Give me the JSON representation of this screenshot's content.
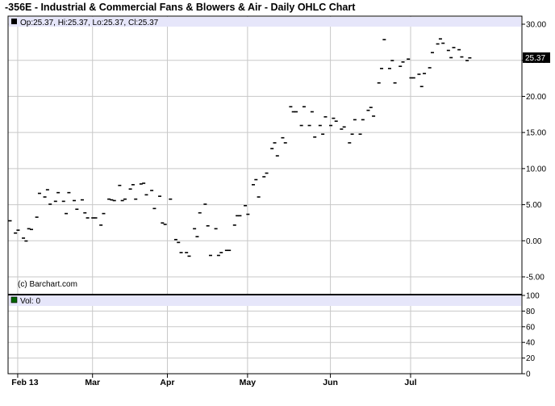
{
  "title": "-356E - Industrial & Commercial Fans & Blowers & Air - Daily OHLC Chart",
  "legend": {
    "ohlc": "Op:25.37, Hi:25.37, Lo:25.37, Cl:25.37",
    "volume": "Vol: 0"
  },
  "watermark": "(c) Barchart.com",
  "colors": {
    "legend_band": "#e6e6fa",
    "grid": "#c8c8c8",
    "price_marker": "#000000",
    "volume_marker": "#006400"
  },
  "chart_data": [
    {
      "type": "ohlc",
      "series_name": "Price",
      "grid": true,
      "y_axis_position": "right",
      "ylim": [
        -5.0,
        30.0
      ],
      "y_ticks": [
        "30.00",
        "25.00",
        "20.00",
        "15.00",
        "10.00",
        "5.00",
        "0.00",
        "-5.00"
      ],
      "x_month_labels": [
        "Feb 13",
        "Mar",
        "Apr",
        "May",
        "Jun",
        "Jul"
      ],
      "last_price_label": "25.37",
      "x_range_days": [
        0,
        182
      ],
      "month_positions_days": [
        3,
        31,
        59,
        89,
        120,
        150
      ],
      "points": [
        {
          "day": 0,
          "close": 2.8
        },
        {
          "day": 2,
          "close": 1.1
        },
        {
          "day": 3,
          "close": 1.5
        },
        {
          "day": 5,
          "close": 0.4
        },
        {
          "day": 6,
          "close": 0.0
        },
        {
          "day": 7,
          "close": 1.7
        },
        {
          "day": 8,
          "close": 1.6
        },
        {
          "day": 10,
          "close": 3.3
        },
        {
          "day": 11,
          "close": 6.6
        },
        {
          "day": 13,
          "close": 6.1
        },
        {
          "day": 14,
          "close": 7.1
        },
        {
          "day": 15,
          "close": 5.1
        },
        {
          "day": 17,
          "close": 5.5
        },
        {
          "day": 18,
          "close": 6.7
        },
        {
          "day": 20,
          "close": 5.5
        },
        {
          "day": 21,
          "close": 3.8
        },
        {
          "day": 22,
          "close": 6.7
        },
        {
          "day": 24,
          "close": 5.6
        },
        {
          "day": 25,
          "close": 4.4
        },
        {
          "day": 27,
          "close": 5.7
        },
        {
          "day": 28,
          "close": 3.9
        },
        {
          "day": 29,
          "close": 3.2
        },
        {
          "day": 31,
          "close": 3.2
        },
        {
          "day": 32,
          "close": 3.2
        },
        {
          "day": 34,
          "close": 2.2
        },
        {
          "day": 35,
          "close": 3.8
        },
        {
          "day": 37,
          "close": 5.8
        },
        {
          "day": 38,
          "close": 5.7
        },
        {
          "day": 39,
          "close": 5.6
        },
        {
          "day": 41,
          "close": 7.7
        },
        {
          "day": 42,
          "close": 5.6
        },
        {
          "day": 43,
          "close": 5.8
        },
        {
          "day": 45,
          "close": 7.2
        },
        {
          "day": 46,
          "close": 7.8
        },
        {
          "day": 47,
          "close": 5.8
        },
        {
          "day": 49,
          "close": 7.9
        },
        {
          "day": 50,
          "close": 8.0
        },
        {
          "day": 51,
          "close": 6.4
        },
        {
          "day": 53,
          "close": 7.0
        },
        {
          "day": 54,
          "close": 4.5
        },
        {
          "day": 56,
          "close": 6.2
        },
        {
          "day": 57,
          "close": 2.5
        },
        {
          "day": 58,
          "close": 2.3
        },
        {
          "day": 60,
          "close": 5.8
        },
        {
          "day": 62,
          "close": 0.2
        },
        {
          "day": 63,
          "close": -0.2
        },
        {
          "day": 64,
          "close": -1.6
        },
        {
          "day": 66,
          "close": -1.6
        },
        {
          "day": 67,
          "close": -2.1
        },
        {
          "day": 69,
          "close": 1.7
        },
        {
          "day": 70,
          "close": 0.6
        },
        {
          "day": 71,
          "close": 3.9
        },
        {
          "day": 73,
          "close": 5.1
        },
        {
          "day": 74,
          "close": 2.1
        },
        {
          "day": 75,
          "close": -2.0
        },
        {
          "day": 77,
          "close": 1.7
        },
        {
          "day": 78,
          "close": -2.0
        },
        {
          "day": 79,
          "close": -1.6
        },
        {
          "day": 81,
          "close": -1.3
        },
        {
          "day": 82,
          "close": -1.3
        },
        {
          "day": 84,
          "close": 2.2
        },
        {
          "day": 85,
          "close": 3.5
        },
        {
          "day": 86,
          "close": 3.5
        },
        {
          "day": 88,
          "close": 4.9
        },
        {
          "day": 89,
          "close": 3.7
        },
        {
          "day": 91,
          "close": 7.8
        },
        {
          "day": 92,
          "close": 8.5
        },
        {
          "day": 93,
          "close": 6.1
        },
        {
          "day": 95,
          "close": 8.9
        },
        {
          "day": 96,
          "close": 9.4
        },
        {
          "day": 98,
          "close": 12.8
        },
        {
          "day": 99,
          "close": 13.6
        },
        {
          "day": 100,
          "close": 11.8
        },
        {
          "day": 102,
          "close": 14.3
        },
        {
          "day": 103,
          "close": 13.6
        },
        {
          "day": 105,
          "close": 18.6
        },
        {
          "day": 106,
          "close": 17.9
        },
        {
          "day": 107,
          "close": 17.9
        },
        {
          "day": 109,
          "close": 16.0
        },
        {
          "day": 110,
          "close": 18.6
        },
        {
          "day": 112,
          "close": 16.0
        },
        {
          "day": 113,
          "close": 17.9
        },
        {
          "day": 114,
          "close": 14.4
        },
        {
          "day": 116,
          "close": 16.0
        },
        {
          "day": 117,
          "close": 14.8
        },
        {
          "day": 118,
          "close": 17.2
        },
        {
          "day": 120,
          "close": 16.0
        },
        {
          "day": 121,
          "close": 17.0
        },
        {
          "day": 122,
          "close": 16.6
        },
        {
          "day": 124,
          "close": 15.5
        },
        {
          "day": 125,
          "close": 15.8
        },
        {
          "day": 127,
          "close": 13.6
        },
        {
          "day": 128,
          "close": 14.8
        },
        {
          "day": 129,
          "close": 16.8
        },
        {
          "day": 131,
          "close": 14.8
        },
        {
          "day": 132,
          "close": 16.8
        },
        {
          "day": 134,
          "close": 18.1
        },
        {
          "day": 135,
          "close": 18.5
        },
        {
          "day": 136,
          "close": 17.3
        },
        {
          "day": 138,
          "close": 21.9
        },
        {
          "day": 139,
          "close": 23.9
        },
        {
          "day": 140,
          "close": 27.9
        },
        {
          "day": 142,
          "close": 23.9
        },
        {
          "day": 143,
          "close": 25.0
        },
        {
          "day": 144,
          "close": 21.9
        },
        {
          "day": 146,
          "close": 24.2
        },
        {
          "day": 147,
          "close": 24.8
        },
        {
          "day": 149,
          "close": 25.2
        },
        {
          "day": 150,
          "close": 22.6
        },
        {
          "day": 151,
          "close": 22.6
        },
        {
          "day": 153,
          "close": 23.1
        },
        {
          "day": 154,
          "close": 21.4
        },
        {
          "day": 155,
          "close": 23.2
        },
        {
          "day": 157,
          "close": 24.0
        },
        {
          "day": 158,
          "close": 26.1
        },
        {
          "day": 160,
          "close": 27.3
        },
        {
          "day": 161,
          "close": 28.0
        },
        {
          "day": 162,
          "close": 27.4
        },
        {
          "day": 164,
          "close": 26.4
        },
        {
          "day": 165,
          "close": 25.4
        },
        {
          "day": 166,
          "close": 26.8
        },
        {
          "day": 168,
          "close": 26.5
        },
        {
          "day": 169,
          "close": 25.5
        },
        {
          "day": 171,
          "close": 25.0
        },
        {
          "day": 172,
          "close": 25.37
        }
      ]
    },
    {
      "type": "bar",
      "series_name": "Vol",
      "grid": true,
      "y_axis_position": "right",
      "ylim": [
        0,
        100
      ],
      "y_ticks": [
        "100",
        "80",
        "60",
        "40",
        "20",
        "0"
      ],
      "values": [
        0
      ]
    }
  ]
}
